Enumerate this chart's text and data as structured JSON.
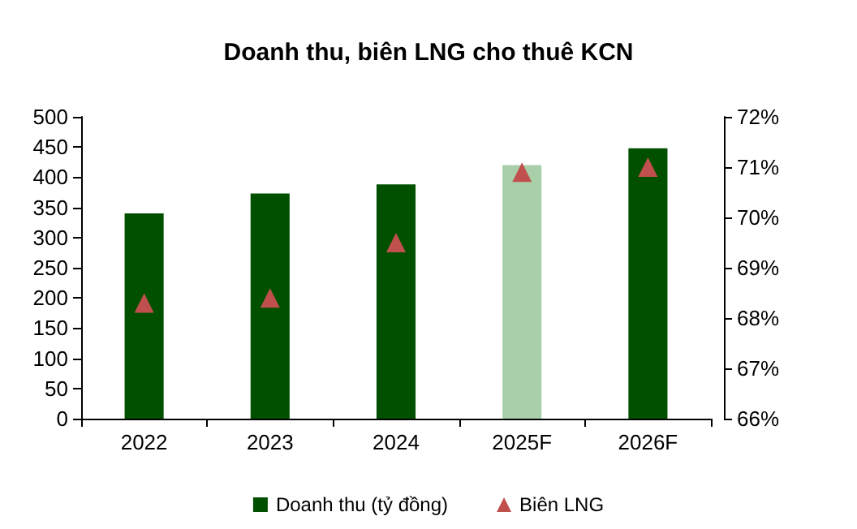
{
  "chart_data": {
    "type": "bar",
    "title": "Doanh thu, biên LNG cho thuê KCN",
    "categories": [
      "2022",
      "2023",
      "2024",
      "2025F",
      "2026F"
    ],
    "series": [
      {
        "name": "Doanh thu (tỷ đồng)",
        "color": "#005000",
        "colors": [
          "#005000",
          "#005000",
          "#005000",
          "#a9cfa9",
          "#005000"
        ],
        "values": [
          340,
          373,
          388,
          420,
          448
        ]
      },
      {
        "name": "Biên LNG",
        "type": "scatter",
        "axis": "y2",
        "color": "#c0504d",
        "values": [
          68.3,
          68.4,
          69.5,
          70.9,
          71.0
        ]
      }
    ],
    "ylim": [
      0,
      500
    ],
    "yticks": [
      0,
      50,
      100,
      150,
      200,
      250,
      300,
      350,
      400,
      450,
      500
    ],
    "y2lim": [
      66,
      72
    ],
    "y2ticks": [
      {
        "value": 66,
        "label": "66%"
      },
      {
        "value": 67,
        "label": "67%"
      },
      {
        "value": 68,
        "label": "68%"
      },
      {
        "value": 69,
        "label": "69%"
      },
      {
        "value": 70,
        "label": "70%"
      },
      {
        "value": 71,
        "label": "71%"
      },
      {
        "value": 72,
        "label": "72%"
      }
    ],
    "marker": "triangle",
    "grid": false,
    "legend": "bottom"
  }
}
